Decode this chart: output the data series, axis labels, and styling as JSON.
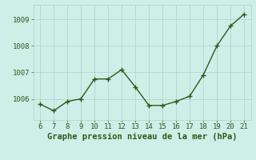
{
  "x": [
    6,
    7,
    8,
    9,
    10,
    11,
    12,
    13,
    14,
    15,
    16,
    17,
    18,
    19,
    20,
    21
  ],
  "y": [
    1005.8,
    1005.55,
    1005.9,
    1006.0,
    1006.75,
    1006.75,
    1007.1,
    1006.45,
    1005.75,
    1005.75,
    1005.9,
    1006.1,
    1006.9,
    1008.0,
    1008.75,
    1009.2
  ],
  "line_color": "#2d5a1b",
  "marker_color": "#2d5a1b",
  "bg_color": "#ceeee8",
  "grid_color": "#aad4cc",
  "xlabel": "Graphe pression niveau de la mer (hPa)",
  "xlabel_color": "#2d5a1b",
  "yticks": [
    1006,
    1007,
    1008,
    1009
  ],
  "xticks": [
    6,
    7,
    8,
    9,
    10,
    11,
    12,
    13,
    14,
    15,
    16,
    17,
    18,
    19,
    20,
    21
  ],
  "ylim": [
    1005.2,
    1009.55
  ],
  "xlim": [
    5.5,
    21.5
  ],
  "tick_color": "#2d5a1b",
  "tick_fontsize": 6.5,
  "xlabel_fontsize": 7.5
}
